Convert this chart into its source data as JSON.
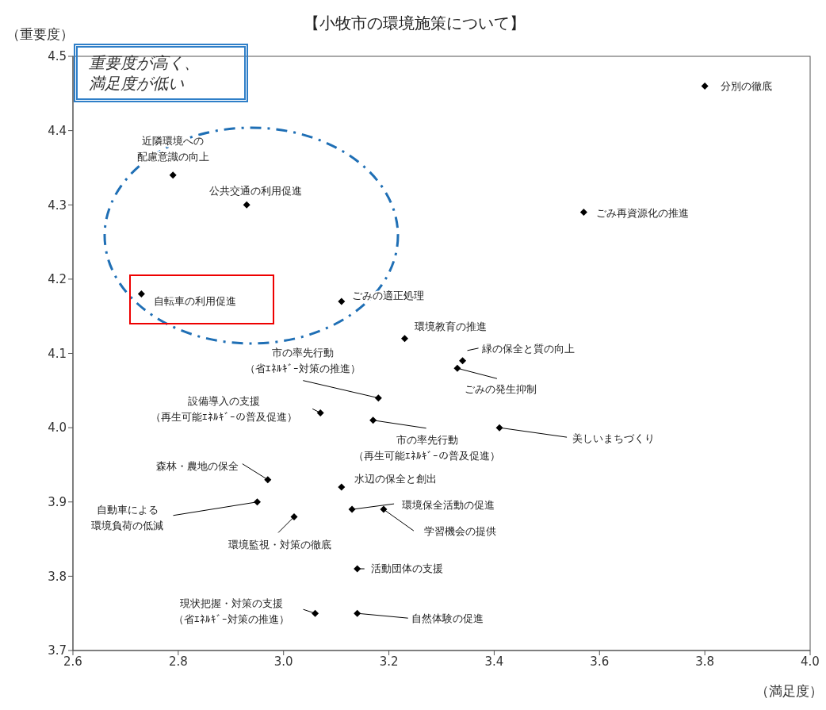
{
  "chart_data": {
    "type": "scatter",
    "title": "【小牧市の環境施策について】",
    "xlabel": "（満足度）",
    "ylabel": "（重要度）",
    "xlim": [
      2.6,
      4.0
    ],
    "xticks": [
      {
        "value": 2.6,
        "label": "2.6"
      },
      {
        "value": 2.8,
        "label": "2.8"
      },
      {
        "value": 3.0,
        "label": "3.0"
      },
      {
        "value": 3.2,
        "label": "3.2"
      },
      {
        "value": 3.4,
        "label": "3.4"
      },
      {
        "value": 3.6,
        "label": "3.6"
      },
      {
        "value": 3.8,
        "label": "3.8"
      },
      {
        "value": 4.0,
        "label": "4.0"
      }
    ],
    "ylim": [
      3.7,
      4.5
    ],
    "yticks": [
      {
        "value": 3.7,
        "label": "3.7"
      },
      {
        "value": 3.8,
        "label": "3.8"
      },
      {
        "value": 3.9,
        "label": "3.9"
      },
      {
        "value": 4.0,
        "label": "4.0"
      },
      {
        "value": 4.1,
        "label": "4.1"
      },
      {
        "value": 4.2,
        "label": "4.2"
      },
      {
        "value": 4.3,
        "label": "4.3"
      },
      {
        "value": 4.4,
        "label": "4.4"
      },
      {
        "value": 4.5,
        "label": "4.5"
      }
    ],
    "grid": false,
    "legend": false,
    "marker": "diamond",
    "series": [
      {
        "color": "#000000",
        "x": [
          3.8,
          3.57,
          2.79,
          2.93,
          2.73,
          3.11,
          3.23,
          3.34,
          3.33,
          3.18,
          3.07,
          3.17,
          3.41,
          2.97,
          3.11,
          2.95,
          3.13,
          3.19,
          3.02,
          3.14,
          3.06,
          3.14
        ],
        "values": [
          4.46,
          4.29,
          4.34,
          4.3,
          4.18,
          4.17,
          4.12,
          4.09,
          4.08,
          4.04,
          4.02,
          4.01,
          4.0,
          3.93,
          3.92,
          3.9,
          3.89,
          3.89,
          3.88,
          3.81,
          3.75,
          3.75
        ]
      }
    ],
    "annotations": [
      "重要度が高く、満足度が低い",
      {
        "text": "分別の徹底",
        "x": 3.8,
        "y": 4.46
      },
      {
        "text": "ごみ再資源化の推進",
        "x": 3.57,
        "y": 4.29
      },
      {
        "text": "近隣環境への配慮意識の向上",
        "x": 2.79,
        "y": 4.34
      },
      {
        "text": "公共交通の利用促進",
        "x": 2.93,
        "y": 4.3
      },
      {
        "text": "自転車の利用促進",
        "x": 2.73,
        "y": 4.18
      },
      {
        "text": "ごみの適正処理",
        "x": 3.11,
        "y": 4.17
      },
      {
        "text": "環境教育の推進",
        "x": 3.23,
        "y": 4.12
      },
      {
        "text": "緑の保全と質の向上",
        "x": 3.34,
        "y": 4.09
      },
      {
        "text": "ごみの発生抑制",
        "x": 3.33,
        "y": 4.08
      },
      {
        "text": "市の率先行動（省ｴﾈﾙｷﾞｰ対策の推進）",
        "x": 3.18,
        "y": 4.04
      },
      {
        "text": "設備導入の支援（再生可能ｴﾈﾙｷﾞｰの普及促進）",
        "x": 3.07,
        "y": 4.02
      },
      {
        "text": "市の率先行動（再生可能ｴﾈﾙｷﾞｰの普及促進）",
        "x": 3.17,
        "y": 4.01
      },
      {
        "text": "美しいまちづくり",
        "x": 3.41,
        "y": 4.0
      },
      {
        "text": "森林・農地の保全",
        "x": 2.97,
        "y": 3.93
      },
      {
        "text": "水辺の保全と創出",
        "x": 3.11,
        "y": 3.92
      },
      {
        "text": "自動車による環境負荷の低減",
        "x": 2.95,
        "y": 3.9
      },
      {
        "text": "環境保全活動の促進",
        "x": 3.13,
        "y": 3.89
      },
      {
        "text": "学習機会の提供",
        "x": 3.19,
        "y": 3.89
      },
      {
        "text": "環境監視・対策の徹底",
        "x": 3.02,
        "y": 3.88
      },
      {
        "text": "活動団体の支援",
        "x": 3.14,
        "y": 3.81
      },
      {
        "text": "現状把握・対策の支援（省ｴﾈﾙｷﾞｰ対策の推進）",
        "x": 3.06,
        "y": 3.75
      },
      {
        "text": "自然体験の促進",
        "x": 3.14,
        "y": 3.75
      }
    ]
  }
}
